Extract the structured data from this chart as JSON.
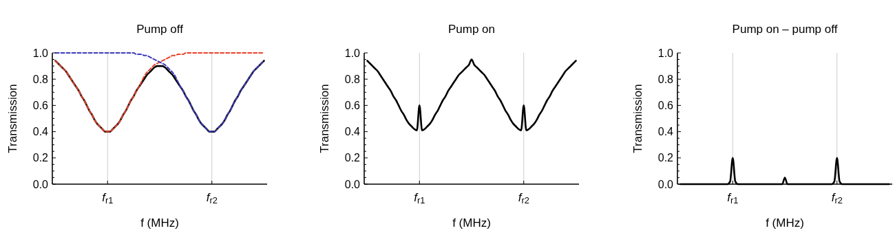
{
  "chart_data": [
    {
      "type": "line",
      "title": "Pump off",
      "xlabel": "f (MHz)",
      "ylabel": "Transmission",
      "ylim": [
        0,
        1
      ],
      "yticks": [
        {
          "value": 0,
          "label": "0.0"
        },
        {
          "value": 0.2,
          "label": "0.2"
        },
        {
          "value": 0.4,
          "label": "0.4"
        },
        {
          "value": 0.6,
          "label": "0.6"
        },
        {
          "value": 0.8,
          "label": "0.8"
        },
        {
          "value": 1,
          "label": "1.0"
        },
        {
          "value": 0.05,
          "label": null
        },
        {
          "value": 0.1,
          "label": null
        },
        {
          "value": 0.15,
          "label": null
        },
        {
          "value": 0.25,
          "label": null
        },
        {
          "value": 0.3,
          "label": null
        },
        {
          "value": 0.35,
          "label": null
        },
        {
          "value": 0.45,
          "label": null
        },
        {
          "value": 0.5,
          "label": null
        },
        {
          "value": 0.55,
          "label": null
        },
        {
          "value": 0.65,
          "label": null
        },
        {
          "value": 0.7,
          "label": null
        },
        {
          "value": 0.75,
          "label": null
        },
        {
          "value": 0.85,
          "label": null
        },
        {
          "value": 0.9,
          "label": null
        },
        {
          "value": 0.95,
          "label": null
        }
      ],
      "grid": "x",
      "categories": [
        null,
        null,
        null,
        null,
        null,
        null,
        null,
        null,
        null,
        null,
        null,
        null,
        null,
        null,
        null,
        null,
        null,
        null,
        null,
        null,
        "f$_{r1}$",
        null,
        null,
        null,
        null,
        null,
        null,
        null,
        null,
        null,
        null,
        null,
        null,
        null,
        null,
        null,
        null,
        null,
        null,
        null,
        null,
        null,
        null,
        null,
        null,
        null,
        null,
        null,
        null,
        null,
        null,
        null,
        null,
        null,
        null,
        null,
        null,
        null,
        null,
        null,
        "f$_{r2}$",
        null,
        null,
        null,
        null,
        null,
        null,
        null,
        null,
        null,
        null,
        null,
        null,
        null,
        null,
        null,
        null,
        null,
        null,
        null,
        null
      ],
      "series": [
        {
          "color": "#000000",
          "line_style": "solid",
          "values": [
            0.94,
            0.92,
            0.9,
            0.88,
            0.86,
            0.83,
            0.8,
            0.77,
            0.74,
            0.71,
            0.67,
            0.64,
            0.6,
            0.56,
            0.53,
            0.49,
            0.46,
            0.44,
            0.42,
            0.4,
            0.4,
            0.4,
            0.42,
            0.44,
            0.46,
            0.49,
            0.53,
            0.56,
            0.6,
            0.64,
            0.67,
            0.71,
            0.74,
            0.77,
            0.8,
            0.83,
            0.85,
            0.87,
            0.89,
            0.9,
            0.9,
            0.9,
            0.89,
            0.87,
            0.85,
            0.83,
            0.8,
            0.77,
            0.74,
            0.71,
            0.67,
            0.64,
            0.6,
            0.56,
            0.53,
            0.49,
            0.46,
            0.44,
            0.42,
            0.4,
            0.4,
            0.4,
            0.42,
            0.44,
            0.46,
            0.49,
            0.53,
            0.56,
            0.6,
            0.64,
            0.67,
            0.71,
            0.74,
            0.77,
            0.8,
            0.83,
            0.86,
            0.88,
            0.9,
            0.92,
            0.94
          ]
        },
        {
          "color": "#e8412a",
          "line_style": "dashed",
          "values": [
            0.94,
            0.92,
            0.9,
            0.88,
            0.86,
            0.83,
            0.8,
            0.77,
            0.74,
            0.71,
            0.67,
            0.64,
            0.6,
            0.56,
            0.53,
            0.49,
            0.46,
            0.44,
            0.42,
            0.4,
            0.4,
            0.4,
            0.42,
            0.44,
            0.46,
            0.49,
            0.53,
            0.56,
            0.6,
            0.64,
            0.67,
            0.71,
            0.74,
            0.78,
            0.82,
            0.85,
            0.87,
            0.89,
            0.91,
            0.92,
            0.93,
            0.94,
            0.95,
            0.96,
            0.97,
            0.98,
            0.98,
            0.99,
            0.99,
            0.99,
            1,
            1,
            1,
            1,
            1,
            1,
            1,
            1,
            1,
            1,
            1,
            1,
            1,
            1,
            1,
            1,
            1,
            1,
            1,
            1,
            1,
            1,
            1,
            1,
            1,
            1,
            1,
            1,
            1,
            1,
            1
          ]
        },
        {
          "color": "#3d3ab8",
          "line_style": "dashed",
          "values": [
            1,
            1,
            1,
            1,
            1,
            1,
            1,
            1,
            1,
            1,
            1,
            1,
            1,
            1,
            1,
            1,
            1,
            1,
            1,
            1,
            1,
            1,
            1,
            1,
            1,
            1,
            1,
            1,
            1,
            1,
            1,
            0.99,
            0.99,
            0.99,
            0.98,
            0.98,
            0.97,
            0.96,
            0.95,
            0.94,
            0.93,
            0.92,
            0.91,
            0.89,
            0.87,
            0.85,
            0.82,
            0.78,
            0.74,
            0.71,
            0.67,
            0.64,
            0.6,
            0.56,
            0.53,
            0.49,
            0.46,
            0.44,
            0.42,
            0.4,
            0.4,
            0.4,
            0.42,
            0.44,
            0.46,
            0.49,
            0.53,
            0.56,
            0.6,
            0.64,
            0.67,
            0.71,
            0.74,
            0.77,
            0.8,
            0.83,
            0.86,
            0.88,
            0.9,
            0.92,
            0.94
          ]
        }
      ]
    },
    {
      "type": "line",
      "title": "Pump on",
      "xlabel": "f (MHz)",
      "ylabel": "Transmission",
      "ylim": [
        0,
        1
      ],
      "yticks": [
        {
          "value": 0,
          "label": "0.0"
        },
        {
          "value": 0.2,
          "label": "0.2"
        },
        {
          "value": 0.4,
          "label": "0.4"
        },
        {
          "value": 0.6,
          "label": "0.6"
        },
        {
          "value": 0.8,
          "label": "0.8"
        },
        {
          "value": 1,
          "label": "1.0"
        },
        {
          "value": 0.05,
          "label": null
        },
        {
          "value": 0.1,
          "label": null
        },
        {
          "value": 0.15,
          "label": null
        },
        {
          "value": 0.25,
          "label": null
        },
        {
          "value": 0.3,
          "label": null
        },
        {
          "value": 0.35,
          "label": null
        },
        {
          "value": 0.45,
          "label": null
        },
        {
          "value": 0.5,
          "label": null
        },
        {
          "value": 0.55,
          "label": null
        },
        {
          "value": 0.65,
          "label": null
        },
        {
          "value": 0.7,
          "label": null
        },
        {
          "value": 0.75,
          "label": null
        },
        {
          "value": 0.85,
          "label": null
        },
        {
          "value": 0.9,
          "label": null
        },
        {
          "value": 0.95,
          "label": null
        }
      ],
      "grid": "x",
      "categories": [
        null,
        null,
        null,
        null,
        null,
        null,
        null,
        null,
        null,
        null,
        null,
        null,
        null,
        null,
        null,
        null,
        null,
        null,
        null,
        null,
        "f$_{r1}$",
        null,
        null,
        null,
        null,
        null,
        null,
        null,
        null,
        null,
        null,
        null,
        null,
        null,
        null,
        null,
        null,
        null,
        null,
        null,
        null,
        null,
        null,
        null,
        null,
        null,
        null,
        null,
        null,
        null,
        null,
        null,
        null,
        null,
        null,
        null,
        null,
        null,
        null,
        null,
        "f$_{r2}$",
        null,
        null,
        null,
        null,
        null,
        null,
        null,
        null,
        null,
        null,
        null,
        null,
        null,
        null,
        null,
        null,
        null,
        null,
        null,
        null
      ],
      "series": [
        {
          "color": "#000000",
          "line_style": "solid",
          "values": [
            0.94,
            0.92,
            0.9,
            0.88,
            0.86,
            0.83,
            0.8,
            0.77,
            0.74,
            0.71,
            0.67,
            0.64,
            0.6,
            0.56,
            0.53,
            0.49,
            0.46,
            0.44,
            0.42,
            0.41,
            0.6,
            0.41,
            0.42,
            0.44,
            0.46,
            0.49,
            0.53,
            0.56,
            0.6,
            0.64,
            0.67,
            0.71,
            0.74,
            0.77,
            0.8,
            0.83,
            0.85,
            0.87,
            0.89,
            0.91,
            0.95,
            0.91,
            0.89,
            0.87,
            0.85,
            0.83,
            0.8,
            0.77,
            0.74,
            0.71,
            0.67,
            0.64,
            0.6,
            0.56,
            0.53,
            0.49,
            0.46,
            0.44,
            0.42,
            0.41,
            0.6,
            0.41,
            0.42,
            0.44,
            0.46,
            0.49,
            0.53,
            0.56,
            0.6,
            0.64,
            0.67,
            0.71,
            0.74,
            0.77,
            0.8,
            0.83,
            0.86,
            0.88,
            0.9,
            0.92,
            0.94
          ]
        }
      ]
    },
    {
      "type": "line",
      "title": "Pump on – pump off",
      "xlabel": "f (MHz)",
      "ylabel": "Transmission",
      "ylim": [
        0,
        1
      ],
      "yticks": [
        {
          "value": 0,
          "label": "0.0"
        },
        {
          "value": 0.2,
          "label": "0.2"
        },
        {
          "value": 0.4,
          "label": "0.4"
        },
        {
          "value": 0.6,
          "label": "0.6"
        },
        {
          "value": 0.8,
          "label": "0.8"
        },
        {
          "value": 1,
          "label": "1.0"
        },
        {
          "value": 0.05,
          "label": null
        },
        {
          "value": 0.1,
          "label": null
        },
        {
          "value": 0.15,
          "label": null
        },
        {
          "value": 0.25,
          "label": null
        },
        {
          "value": 0.3,
          "label": null
        },
        {
          "value": 0.35,
          "label": null
        },
        {
          "value": 0.45,
          "label": null
        },
        {
          "value": 0.5,
          "label": null
        },
        {
          "value": 0.55,
          "label": null
        },
        {
          "value": 0.65,
          "label": null
        },
        {
          "value": 0.7,
          "label": null
        },
        {
          "value": 0.75,
          "label": null
        },
        {
          "value": 0.85,
          "label": null
        },
        {
          "value": 0.9,
          "label": null
        },
        {
          "value": 0.95,
          "label": null
        }
      ],
      "grid": "x",
      "categories": [
        null,
        null,
        null,
        null,
        null,
        null,
        null,
        null,
        null,
        null,
        null,
        null,
        null,
        null,
        null,
        null,
        null,
        null,
        null,
        null,
        "f$_{r1}$",
        null,
        null,
        null,
        null,
        null,
        null,
        null,
        null,
        null,
        null,
        null,
        null,
        null,
        null,
        null,
        null,
        null,
        null,
        null,
        null,
        null,
        null,
        null,
        null,
        null,
        null,
        null,
        null,
        null,
        null,
        null,
        null,
        null,
        null,
        null,
        null,
        null,
        null,
        null,
        "f$_{r2}$",
        null,
        null,
        null,
        null,
        null,
        null,
        null,
        null,
        null,
        null,
        null,
        null,
        null,
        null,
        null,
        null,
        null,
        null,
        null,
        null
      ],
      "series": [
        {
          "color": "#000000",
          "line_style": "solid",
          "values": [
            0,
            0,
            0,
            0,
            0,
            0,
            0,
            0,
            0,
            0,
            0,
            0,
            0,
            0,
            0,
            0,
            0,
            0,
            0,
            0.02,
            0.2,
            0.02,
            0,
            0,
            0,
            0,
            0,
            0,
            0,
            0,
            0,
            0,
            0,
            0,
            0,
            0,
            0,
            0,
            0,
            0,
            0.05,
            0,
            0,
            0,
            0,
            0,
            0,
            0,
            0,
            0,
            0,
            0,
            0,
            0,
            0,
            0,
            0,
            0,
            0,
            0.02,
            0.2,
            0.02,
            0,
            0,
            0,
            0,
            0,
            0,
            0,
            0,
            0,
            0,
            0,
            0,
            0,
            0,
            0,
            0,
            0,
            0,
            0
          ]
        }
      ]
    }
  ]
}
